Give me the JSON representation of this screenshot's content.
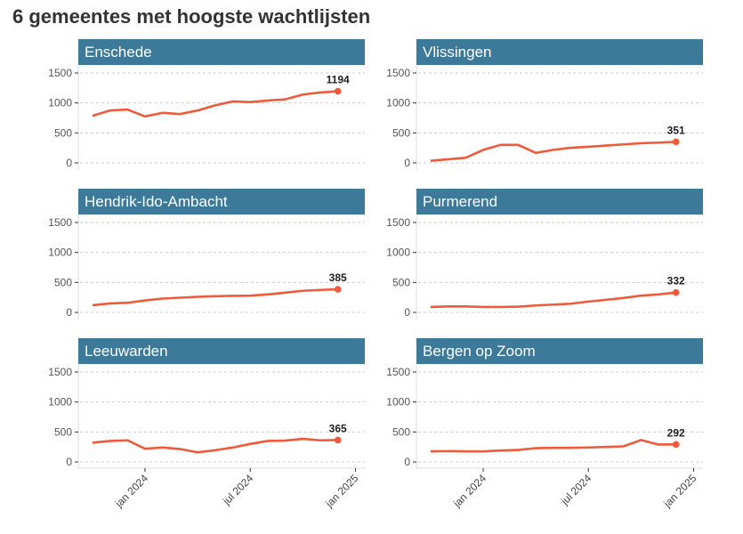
{
  "chart_data": {
    "type": "line",
    "title": "6 gemeentes met hoogste wachtlijsten",
    "layout": "small multiples, 3 rows x 2 columns, shared axes",
    "x": [
      "2023-10",
      "2023-11",
      "2023-12",
      "2024-01",
      "2024-02",
      "2024-03",
      "2024-04",
      "2024-05",
      "2024-06",
      "2024-07",
      "2024-08",
      "2024-09",
      "2024-10",
      "2024-11",
      "2024-12"
    ],
    "x_ticks": [
      "jan 2024",
      "jul 2024",
      "jan 2025"
    ],
    "y_ticks": [
      0,
      500,
      1000,
      1500
    ],
    "ylim": [
      0,
      1600
    ],
    "grid": "horizontal dashed",
    "line_color": "#ee5a3a",
    "strip_color": "#3d7a99",
    "series": [
      {
        "name": "Enschede",
        "values": [
          785,
          875,
          890,
          775,
          835,
          815,
          875,
          960,
          1025,
          1015,
          1040,
          1060,
          1140,
          1175,
          1194
        ],
        "label": "1194"
      },
      {
        "name": "Vlissingen",
        "values": [
          35,
          60,
          85,
          217,
          300,
          300,
          167,
          217,
          252,
          268,
          288,
          308,
          328,
          338,
          351
        ],
        "label": "351"
      },
      {
        "name": "Hendrik-Ido-Ambacht",
        "values": [
          120,
          150,
          160,
          200,
          230,
          245,
          260,
          270,
          275,
          280,
          300,
          330,
          360,
          375,
          385
        ],
        "label": "385"
      },
      {
        "name": "Purmerend",
        "values": [
          90,
          100,
          100,
          90,
          90,
          95,
          115,
          130,
          145,
          180,
          210,
          240,
          280,
          300,
          332
        ],
        "label": "332"
      },
      {
        "name": "Leeuwarden",
        "values": [
          320,
          350,
          360,
          220,
          240,
          215,
          160,
          195,
          240,
          300,
          350,
          355,
          385,
          360,
          365
        ],
        "label": "365"
      },
      {
        "name": "Bergen op Zoom",
        "values": [
          175,
          180,
          175,
          175,
          190,
          200,
          230,
          235,
          235,
          240,
          250,
          260,
          365,
          290,
          292
        ],
        "label": "292"
      }
    ]
  }
}
